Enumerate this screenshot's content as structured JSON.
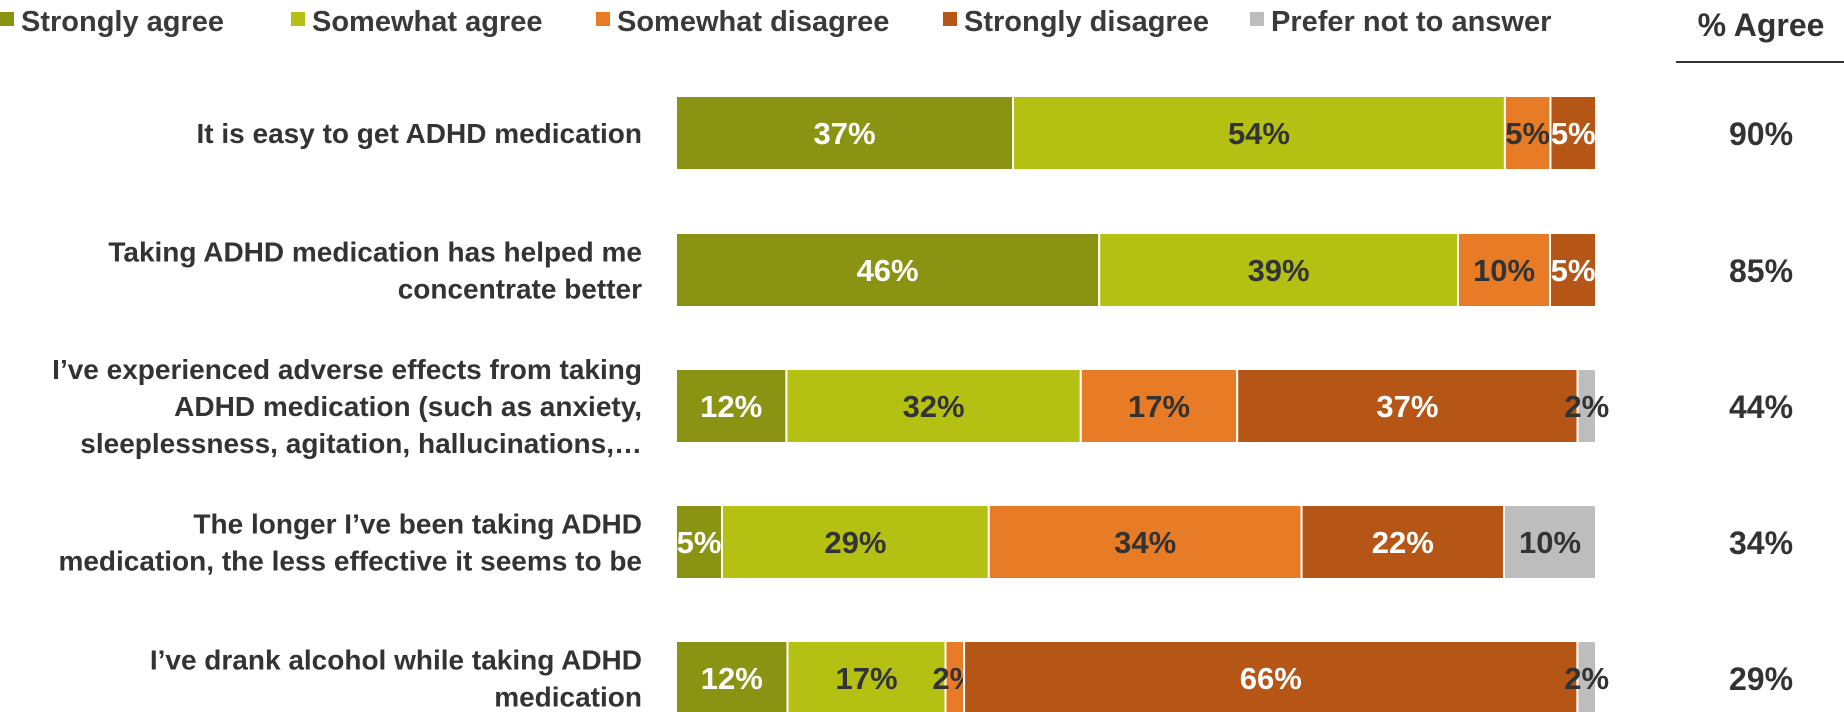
{
  "chart_data": {
    "type": "bar",
    "orientation": "horizontal",
    "stacked": true,
    "grid": false,
    "legend_position": "top",
    "legend": [
      {
        "name": "Strongly agree",
        "color": "#8A9412"
      },
      {
        "name": "Somewhat agree",
        "color": "#B5C112"
      },
      {
        "name": "Somewhat disagree",
        "color": "#E87C26"
      },
      {
        "name": "Strongly disagree",
        "color": "#B55617"
      },
      {
        "name": "Prefer not to answer",
        "color": "#BDBDBD"
      }
    ],
    "categories": [
      "It is easy to get ADHD medication",
      "Taking ADHD medication has helped me concentrate better",
      "I’ve experienced adverse effects from taking ADHD medication (such as anxiety, sleeplessness, agitation, hallucinations,…",
      "The longer I’ve been taking ADHD medication, the less effective it seems to be",
      "I’ve drank alcohol while taking ADHD medication"
    ],
    "series": [
      {
        "name": "Strongly agree",
        "values": [
          37,
          46,
          12,
          5,
          12
        ]
      },
      {
        "name": "Somewhat agree",
        "values": [
          54,
          39,
          32,
          29,
          17
        ]
      },
      {
        "name": "Somewhat disagree",
        "values": [
          5,
          10,
          17,
          34,
          2
        ]
      },
      {
        "name": "Strongly disagree",
        "values": [
          5,
          5,
          37,
          22,
          66
        ]
      },
      {
        "name": "Prefer not to answer",
        "values": [
          0,
          0,
          2,
          10,
          2
        ]
      }
    ],
    "agree_header": "% Agree",
    "agree_values": [
      "90%",
      "85%",
      "44%",
      "34%",
      "29%"
    ]
  }
}
